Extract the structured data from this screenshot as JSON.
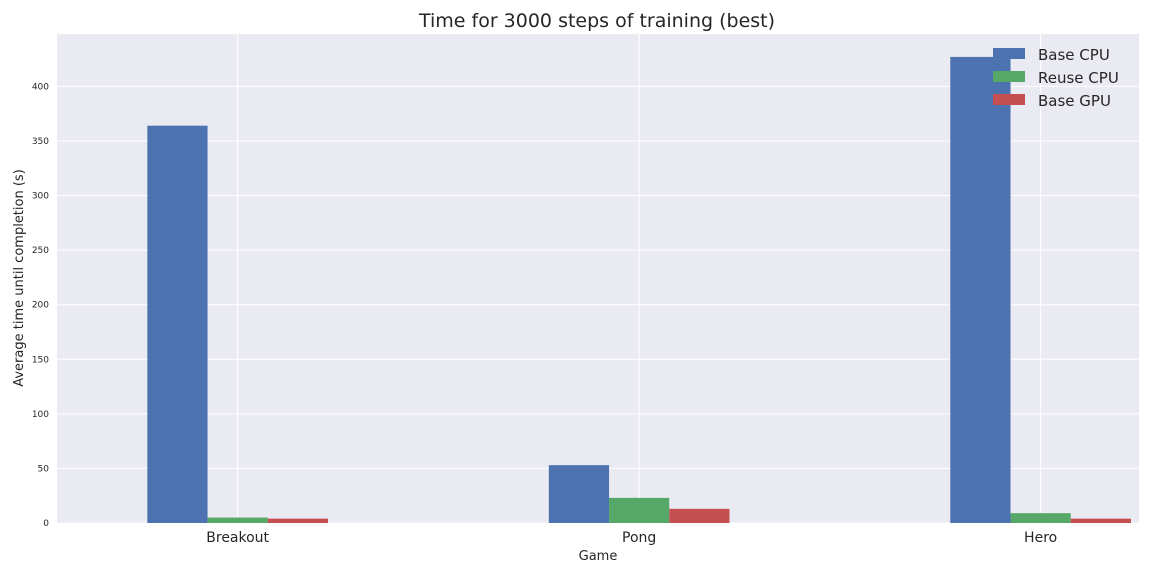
{
  "chart_data": {
    "type": "bar",
    "title": "Time for 3000 steps of training (best)",
    "xlabel": "Game",
    "ylabel": "Average time until completion (s)",
    "categories": [
      "Breakout",
      "Pong",
      "Hero"
    ],
    "series": [
      {
        "name": "Base CPU",
        "values": [
          364,
          53,
          427
        ],
        "color": "#4c72b0"
      },
      {
        "name": "Reuse CPU",
        "values": [
          5,
          23,
          9
        ],
        "color": "#55a868"
      },
      {
        "name": "Base GPU",
        "values": [
          4,
          13,
          4
        ],
        "color": "#c44e52"
      }
    ],
    "yticks": [
      "0",
      "50",
      "100",
      "150",
      "200",
      "250",
      "300",
      "350",
      "400"
    ],
    "ylim": [
      0,
      448
    ],
    "grid": true,
    "legend_position": "top-right",
    "background_color": "#eaeaf2",
    "grid_color": "#ffffff"
  }
}
